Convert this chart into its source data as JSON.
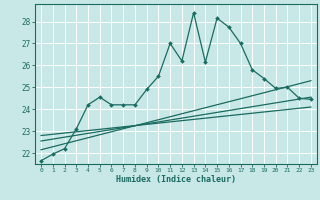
{
  "xlabel": "Humidex (Indice chaleur)",
  "bg_color": "#c8e8e8",
  "grid_color": "#ffffff",
  "line_color": "#1a6b60",
  "xlim": [
    -0.5,
    23.5
  ],
  "ylim": [
    21.5,
    28.8
  ],
  "yticks": [
    22,
    23,
    24,
    25,
    26,
    27,
    28
  ],
  "xticks": [
    0,
    1,
    2,
    3,
    4,
    5,
    6,
    7,
    8,
    9,
    10,
    11,
    12,
    13,
    14,
    15,
    16,
    17,
    18,
    19,
    20,
    21,
    22,
    23
  ],
  "main_x": [
    0,
    1,
    2,
    3,
    4,
    5,
    6,
    7,
    8,
    9,
    10,
    11,
    12,
    13,
    14,
    15,
    16,
    17,
    18,
    19,
    20,
    21,
    22,
    23
  ],
  "main_y": [
    21.65,
    21.95,
    22.2,
    23.1,
    24.2,
    24.55,
    24.2,
    24.2,
    24.2,
    24.9,
    25.5,
    27.0,
    26.2,
    28.4,
    26.15,
    28.15,
    27.75,
    27.0,
    25.8,
    25.4,
    24.95,
    25.0,
    24.5,
    24.45
  ],
  "line1_x": [
    0,
    23
  ],
  "line1_y": [
    22.15,
    25.3
  ],
  "line2_x": [
    0,
    23
  ],
  "line2_y": [
    22.55,
    24.55
  ],
  "line3_x": [
    0,
    23
  ],
  "line3_y": [
    22.8,
    24.1
  ]
}
